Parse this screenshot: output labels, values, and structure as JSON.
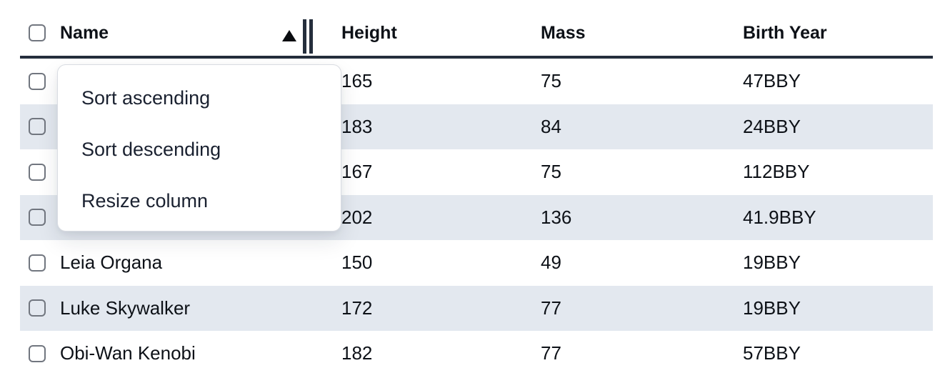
{
  "table": {
    "columns": [
      {
        "key": "name",
        "label": "Name",
        "sorted": "ascending"
      },
      {
        "key": "height",
        "label": "Height"
      },
      {
        "key": "mass",
        "label": "Mass"
      },
      {
        "key": "birth_year",
        "label": "Birth Year"
      }
    ],
    "rows": [
      {
        "name": "",
        "height": "165",
        "mass": "75",
        "birth_year": "47BBY"
      },
      {
        "name": "",
        "height": "183",
        "mass": "84",
        "birth_year": "24BBY"
      },
      {
        "name": "",
        "height": "167",
        "mass": "75",
        "birth_year": "112BBY"
      },
      {
        "name": "",
        "height": "202",
        "mass": "136",
        "birth_year": "41.9BBY"
      },
      {
        "name": "Leia Organa",
        "height": "150",
        "mass": "49",
        "birth_year": "19BBY"
      },
      {
        "name": "Luke Skywalker",
        "height": "172",
        "mass": "77",
        "birth_year": "19BBY"
      },
      {
        "name": "Obi-Wan Kenobi",
        "height": "182",
        "mass": "77",
        "birth_year": "57BBY"
      }
    ]
  },
  "context_menu": {
    "items": [
      {
        "label": "Sort ascending"
      },
      {
        "label": "Sort descending"
      },
      {
        "label": "Resize column"
      }
    ]
  },
  "icons": {
    "sort_ascending_indicator": "triangle-up",
    "column_resize_handle": "double-vertical-bars"
  },
  "colors": {
    "header_border": "#252e3c",
    "row_stripe": "#e3e8ef",
    "checkbox_border": "#71767f",
    "menu_border": "#d9dce2",
    "text": "#0d1117"
  }
}
